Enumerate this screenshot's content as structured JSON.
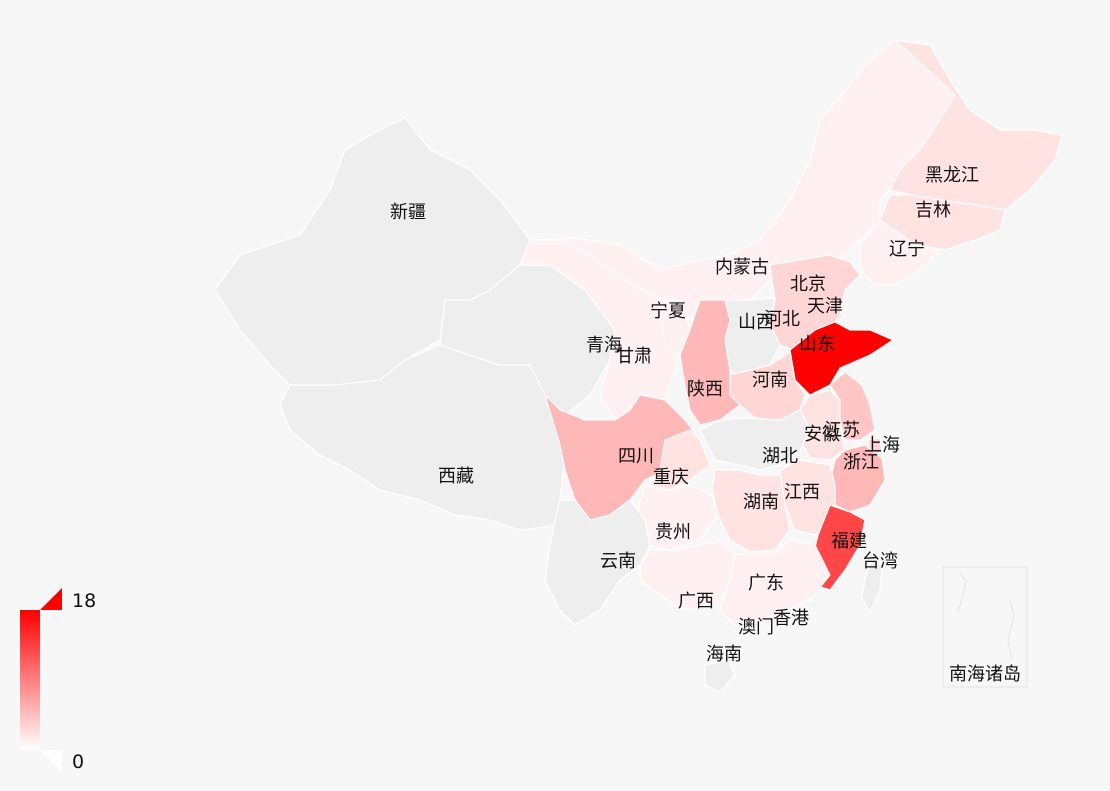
{
  "map": {
    "colors": {
      "background": "#f7f7f7",
      "no_data": "#eeeeee",
      "scale_min": "#ffffff",
      "scale_max": "#ff0000",
      "label": "#111111"
    },
    "legend": {
      "max_label": "18",
      "min_label": "0",
      "min": 0,
      "max": 18,
      "orientation": "vertical",
      "placement": "bottom-left"
    },
    "inset": {
      "label": "南海诸岛"
    },
    "regions": [
      {
        "name": "新疆",
        "level": null
      },
      {
        "name": "西藏",
        "level": null
      },
      {
        "name": "青海",
        "level": null
      },
      {
        "name": "甘肃",
        "level": 1
      },
      {
        "name": "宁夏",
        "level": 1
      },
      {
        "name": "内蒙古",
        "level": 1
      },
      {
        "name": "黑龙江",
        "level": 2
      },
      {
        "name": "吉林",
        "level": 2
      },
      {
        "name": "辽宁",
        "level": 1
      },
      {
        "name": "北京",
        "level": 4
      },
      {
        "name": "天津",
        "level": 3
      },
      {
        "name": "河北",
        "level": 3
      },
      {
        "name": "山西",
        "level": null
      },
      {
        "name": "山东",
        "level": 18
      },
      {
        "name": "河南",
        "level": 3
      },
      {
        "name": "陕西",
        "level": 5
      },
      {
        "name": "四川",
        "level": 5
      },
      {
        "name": "重庆",
        "level": 2
      },
      {
        "name": "安徽",
        "level": 2
      },
      {
        "name": "江苏",
        "level": 4
      },
      {
        "name": "上海",
        "level": 3
      },
      {
        "name": "浙江",
        "level": 5
      },
      {
        "name": "湖北",
        "level": null
      },
      {
        "name": "湖南",
        "level": 2
      },
      {
        "name": "江西",
        "level": 2
      },
      {
        "name": "福建",
        "level": 13
      },
      {
        "name": "台湾",
        "level": null
      },
      {
        "name": "贵州",
        "level": 1
      },
      {
        "name": "云南",
        "level": null
      },
      {
        "name": "广西",
        "level": 1
      },
      {
        "name": "广东",
        "level": 1
      },
      {
        "name": "香港",
        "level": 1
      },
      {
        "name": "澳门",
        "level": 1
      },
      {
        "name": "海南",
        "level": null
      }
    ]
  }
}
